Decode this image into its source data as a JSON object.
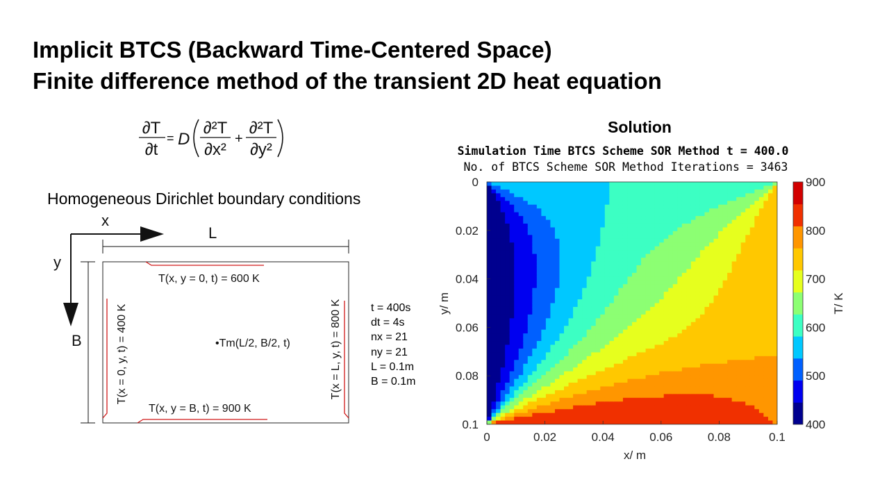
{
  "slide": {
    "title_line1": "Implicit BTCS (Backward Time-Centered Space)",
    "title_line2": "Finite difference method  of the transient 2D heat equation"
  },
  "equation": {
    "lhs_num": "∂T",
    "lhs_den": "∂t",
    "equals": "=",
    "coeff": "D",
    "t1_num": "∂²T",
    "t1_den": "∂x²",
    "plus": "+",
    "t2_num": "∂²T",
    "t2_den": "∂y²"
  },
  "boundary": {
    "heading": "Homogeneous Dirichlet boundary conditions",
    "x_label": "x",
    "y_label": "y",
    "L_label": "L",
    "B_label": "B",
    "top_bc": "T(x, y = 0, t) = 600 K",
    "bottom_bc": "T(x, y = B, t) = 900 K",
    "left_bc": "T(x = 0, y, t) = 400 K",
    "right_bc": "T(x = L, y, t) = 800 K",
    "monitor_point": "•Tm(L/2, B/2, t)"
  },
  "parameters": [
    "t = 400s",
    "dt = 4s",
    "nx = 21",
    "ny = 21",
    "L = 0.1m",
    "B = 0.1m"
  ],
  "solution": {
    "heading": "Solution",
    "sim_title": "Simulation Time BTCS Scheme SOR Method t = 400.0",
    "sim_subtitle": "No. of BTCS Scheme SOR Method Iterations = 3463"
  },
  "chart_data": {
    "type": "heatmap",
    "subtype": "filled-contour",
    "title": "Simulation Time BTCS Scheme SOR Method t = 400.0",
    "subtitle": "No. of BTCS Scheme SOR Method Iterations = 3463",
    "xlabel": "x/ m",
    "ylabel": "y/ m",
    "colorbar_label": "T/ K",
    "xlim": [
      0,
      0.1
    ],
    "ylim": [
      0,
      0.1
    ],
    "y_axis_reversed": true,
    "xticks": [
      "0",
      "0.02",
      "0.04",
      "0.06",
      "0.08",
      "0.1"
    ],
    "yticks": [
      "0",
      "0.02",
      "0.04",
      "0.06",
      "0.08",
      "0.1"
    ],
    "colorbar_ticks": [
      "400",
      "500",
      "600",
      "700",
      "800",
      "900"
    ],
    "colorbar_range": [
      400,
      900
    ],
    "colormap": "jet",
    "boundary_values": {
      "top_y0": 600,
      "bottom_yB": 900,
      "left_x0": 400,
      "right_xL": 800
    },
    "contour_levels": [
      400,
      450,
      500,
      550,
      600,
      650,
      700,
      750,
      800,
      850,
      900
    ],
    "band_colors": [
      "#00008f",
      "#0000f0",
      "#0060ff",
      "#00c8ff",
      "#3cffc3",
      "#8cff73",
      "#e6ff1e",
      "#ffc800",
      "#ff9600",
      "#f03000",
      "#d20000"
    ]
  }
}
